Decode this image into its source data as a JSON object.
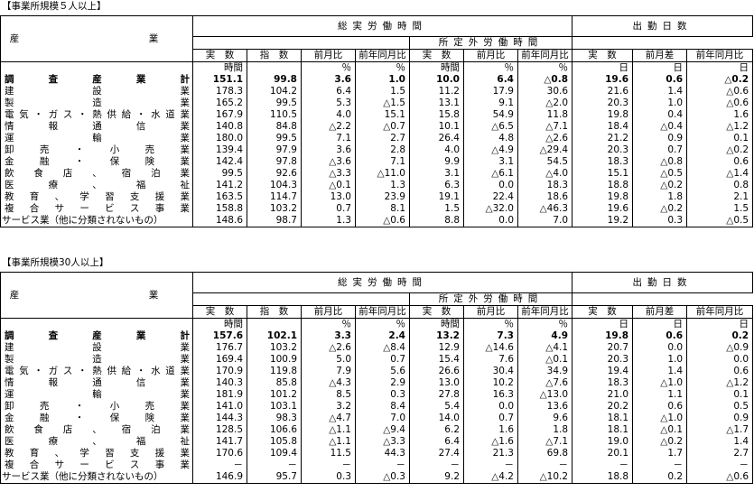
{
  "sections": [
    {
      "title": "【事業所規模５人以上】",
      "industry_header": "産　　　業",
      "group1": "総実労働時間",
      "group2": "出勤日数",
      "overtime": "所定外労働時間",
      "col_jissu": "実　数",
      "col_shisu": "指　数",
      "col_zengetsu_hi": "前月比",
      "col_zennen_hi": "前年同月比",
      "col_zengetsu_sa": "前月差",
      "col_zennen_sa": "前年同月比",
      "units": [
        "時間",
        "",
        "％",
        "％",
        "時間",
        "％",
        "％",
        "日",
        "日",
        "日"
      ],
      "rows": [
        {
          "label": "調査産業計",
          "bold": true,
          "v": [
            "151.1",
            "99.8",
            "3.6",
            "1.0",
            "10.0",
            "6.4",
            "△0.8",
            "19.6",
            "0.6",
            "△0.2"
          ]
        },
        {
          "label": "建設業",
          "v": [
            "178.3",
            "104.2",
            "6.4",
            "1.5",
            "11.2",
            "17.9",
            "30.6",
            "21.6",
            "1.4",
            "△0.6"
          ]
        },
        {
          "label": "製造業",
          "v": [
            "165.2",
            "99.5",
            "5.3",
            "△1.5",
            "13.1",
            "9.1",
            "△2.0",
            "20.3",
            "1.0",
            "△0.6"
          ]
        },
        {
          "label": "電気・ガス・熱供給・水道業",
          "v": [
            "167.9",
            "110.5",
            "4.0",
            "15.1",
            "15.8",
            "54.9",
            "11.8",
            "19.8",
            "0.4",
            "1.6"
          ]
        },
        {
          "label": "情報通信業",
          "v": [
            "140.8",
            "84.8",
            "△2.2",
            "△0.7",
            "10.1",
            "△6.5",
            "△7.1",
            "18.4",
            "△0.4",
            "△1.2"
          ]
        },
        {
          "label": "運輸業",
          "v": [
            "180.0",
            "99.5",
            "7.1",
            "2.7",
            "26.4",
            "4.8",
            "△2.6",
            "21.2",
            "0.9",
            "0.1"
          ]
        },
        {
          "label": "卸売・小売業",
          "v": [
            "139.4",
            "97.9",
            "3.6",
            "2.8",
            "4.0",
            "△4.9",
            "△29.4",
            "20.3",
            "0.7",
            "△0.2"
          ]
        },
        {
          "label": "金融・保険業",
          "v": [
            "142.4",
            "97.8",
            "△3.6",
            "7.1",
            "9.9",
            "3.1",
            "54.5",
            "18.3",
            "△0.8",
            "0.6"
          ]
        },
        {
          "label": "飲食店、宿泊業",
          "v": [
            "99.5",
            "92.6",
            "△3.3",
            "△11.0",
            "3.1",
            "△6.1",
            "△4.0",
            "15.1",
            "△0.5",
            "△1.4"
          ]
        },
        {
          "label": "医療、福祉",
          "v": [
            "141.2",
            "104.3",
            "△0.1",
            "1.3",
            "6.3",
            "0.0",
            "18.3",
            "18.8",
            "△0.2",
            "0.8"
          ]
        },
        {
          "label": "教育、学習支援業",
          "v": [
            "163.5",
            "114.7",
            "13.0",
            "23.9",
            "19.1",
            "22.4",
            "18.6",
            "19.8",
            "1.8",
            "2.1"
          ]
        },
        {
          "label": "複合サービス事業",
          "v": [
            "158.8",
            "103.2",
            "0.7",
            "8.1",
            "1.5",
            "△32.0",
            "△46.3",
            "19.6",
            "△0.2",
            "1.5"
          ]
        },
        {
          "label": "サービス業（他に分類されないもの）",
          "plain": true,
          "v": [
            "148.6",
            "98.7",
            "1.3",
            "△0.6",
            "8.8",
            "0.0",
            "7.0",
            "19.2",
            "0.3",
            "△0.5"
          ]
        }
      ]
    },
    {
      "title": "【事業所規模30人以上】",
      "industry_header": "産　　　業",
      "group1": "総実労働時間",
      "group2": "出勤日数",
      "overtime": "所定外労働時間",
      "col_jissu": "実　数",
      "col_shisu": "指　数",
      "col_zengetsu_hi": "前月比",
      "col_zennen_hi": "前年同月比",
      "col_zengetsu_sa": "前月差",
      "col_zennen_sa": "前年同月比",
      "units": [
        "時間",
        "",
        "％",
        "％",
        "時間",
        "％",
        "％",
        "日",
        "日",
        "日"
      ],
      "rows": [
        {
          "label": "調査産業計",
          "bold": true,
          "v": [
            "157.6",
            "102.1",
            "3.3",
            "2.4",
            "13.2",
            "7.3",
            "4.9",
            "19.8",
            "0.6",
            "0.2"
          ]
        },
        {
          "label": "建設業",
          "v": [
            "176.7",
            "103.2",
            "△2.6",
            "△8.4",
            "12.9",
            "△14.6",
            "△4.1",
            "20.7",
            "0.0",
            "△0.9"
          ]
        },
        {
          "label": "製造業",
          "v": [
            "169.4",
            "100.9",
            "5.0",
            "0.7",
            "15.4",
            "7.6",
            "△0.1",
            "20.3",
            "1.0",
            "0.0"
          ]
        },
        {
          "label": "電気・ガス・熱供給・水道業",
          "v": [
            "170.9",
            "119.8",
            "7.9",
            "5.6",
            "26.6",
            "30.4",
            "34.9",
            "19.4",
            "1.4",
            "0.6"
          ]
        },
        {
          "label": "情報通信業",
          "v": [
            "140.3",
            "85.8",
            "△4.3",
            "2.9",
            "13.0",
            "10.2",
            "△7.6",
            "18.3",
            "△1.0",
            "△1.2"
          ]
        },
        {
          "label": "運輸業",
          "v": [
            "181.9",
            "101.2",
            "8.5",
            "0.3",
            "27.8",
            "16.3",
            "△13.0",
            "21.0",
            "1.1",
            "0.1"
          ]
        },
        {
          "label": "卸売・小売業",
          "v": [
            "141.0",
            "103.1",
            "3.2",
            "8.4",
            "5.4",
            "0.0",
            "13.6",
            "20.2",
            "0.6",
            "0.5"
          ]
        },
        {
          "label": "金融・保険業",
          "v": [
            "144.3",
            "98.3",
            "△4.7",
            "7.0",
            "14.0",
            "0.7",
            "9.6",
            "18.1",
            "△1.0",
            "0.9"
          ]
        },
        {
          "label": "飲食店、宿泊業",
          "v": [
            "128.5",
            "106.6",
            "△1.1",
            "△9.4",
            "6.2",
            "1.6",
            "1.8",
            "18.1",
            "△0.1",
            "△1.7"
          ]
        },
        {
          "label": "医療、福祉",
          "v": [
            "141.7",
            "105.8",
            "△1.1",
            "△3.3",
            "6.4",
            "△1.6",
            "△7.1",
            "19.0",
            "△0.2",
            "1.4"
          ]
        },
        {
          "label": "教育、学習支援業",
          "v": [
            "170.6",
            "109.4",
            "11.5",
            "44.3",
            "27.4",
            "21.3",
            "69.8",
            "20.1",
            "1.7",
            "2.7"
          ]
        },
        {
          "label": "複合サービス事業",
          "v": [
            "－",
            "－",
            "－",
            "－",
            "－",
            "－",
            "－",
            "－",
            "－",
            "－"
          ]
        },
        {
          "label": "サービス業（他に分類されないもの）",
          "plain": true,
          "v": [
            "146.9",
            "95.7",
            "0.3",
            "△0.3",
            "9.2",
            "△4.2",
            "△10.2",
            "18.8",
            "0.2",
            "△0.6"
          ]
        }
      ]
    }
  ]
}
